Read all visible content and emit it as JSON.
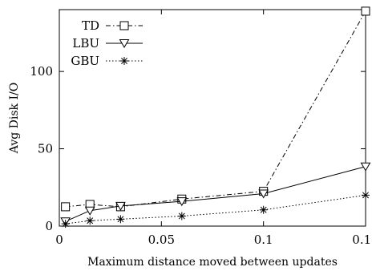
{
  "chart_data": {
    "type": "line",
    "title": "",
    "xlabel": "Maximum distance moved between updates",
    "ylabel": "Avg Disk I/O",
    "xlim": [
      0,
      0.15
    ],
    "ylim": [
      0,
      140
    ],
    "x_ticks": [
      0,
      0.05,
      0.1,
      0.15
    ],
    "x_tick_labels": [
      "0",
      "0.05",
      "0.1",
      "0.15"
    ],
    "y_ticks": [
      0,
      50,
      100
    ],
    "y_tick_labels": [
      "0",
      "50",
      "100"
    ],
    "grid": false,
    "legend_position": "top-left",
    "series": [
      {
        "name": "TD",
        "marker": "square",
        "line": "dash-dot",
        "x": [
          0.003,
          0.015,
          0.03,
          0.06,
          0.1,
          0.15
        ],
        "y": [
          12.5,
          14,
          12.5,
          17.5,
          22.5,
          139
        ]
      },
      {
        "name": "LBU",
        "marker": "triangle-down",
        "line": "solid",
        "x": [
          0.003,
          0.015,
          0.03,
          0.06,
          0.1,
          0.15
        ],
        "y": [
          3,
          10,
          13,
          16,
          21,
          38.5
        ]
      },
      {
        "name": "GBU",
        "marker": "asterisk",
        "line": "dotted",
        "x": [
          0.003,
          0.015,
          0.03,
          0.06,
          0.1,
          0.15
        ],
        "y": [
          1.5,
          3.5,
          4.5,
          6.5,
          10.5,
          20
        ]
      }
    ]
  }
}
